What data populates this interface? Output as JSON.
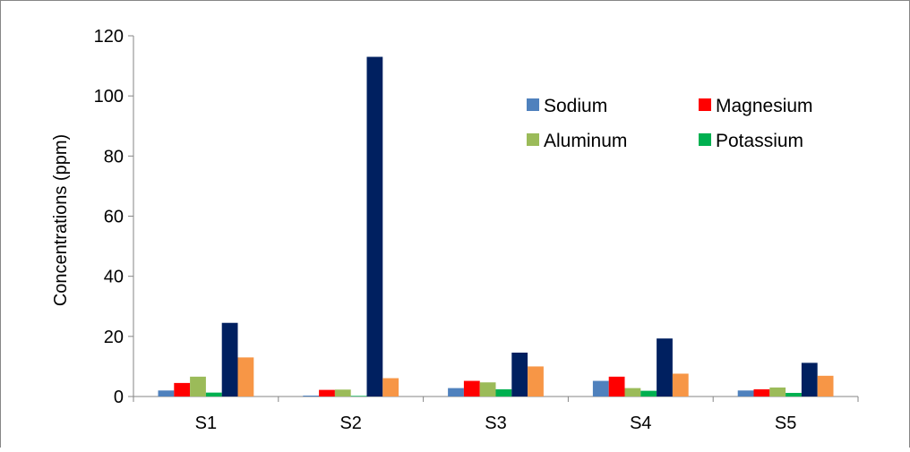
{
  "chart_data": {
    "type": "bar",
    "title": "",
    "xlabel": "",
    "ylabel": "Concentrations (ppm)",
    "ylim": [
      0,
      120
    ],
    "yticks": [
      0,
      20,
      40,
      60,
      80,
      100,
      120
    ],
    "grid": false,
    "legend_position": "top-right",
    "categories": [
      "S1",
      "S2",
      "S3",
      "S4",
      "S5"
    ],
    "series": [
      {
        "name": "Sodium",
        "color": "#4F81BD",
        "values": [
          2.0,
          0.3,
          2.8,
          5.2,
          2.0
        ]
      },
      {
        "name": "Magnesium",
        "color": "#FF0000",
        "values": [
          4.5,
          2.2,
          5.2,
          6.6,
          2.4
        ]
      },
      {
        "name": "Aluminum",
        "color": "#9BBB59",
        "values": [
          6.6,
          2.3,
          4.7,
          2.8,
          3.0
        ]
      },
      {
        "name": "Potassium",
        "color": "#00B050",
        "values": [
          1.3,
          0.2,
          2.4,
          1.9,
          1.2
        ]
      },
      {
        "name": "",
        "color": "#002060",
        "values": [
          24.5,
          113.0,
          14.6,
          19.3,
          11.2
        ]
      },
      {
        "name": "",
        "color": "#F79646",
        "values": [
          13.0,
          6.1,
          10.0,
          7.6,
          6.9
        ]
      }
    ]
  }
}
